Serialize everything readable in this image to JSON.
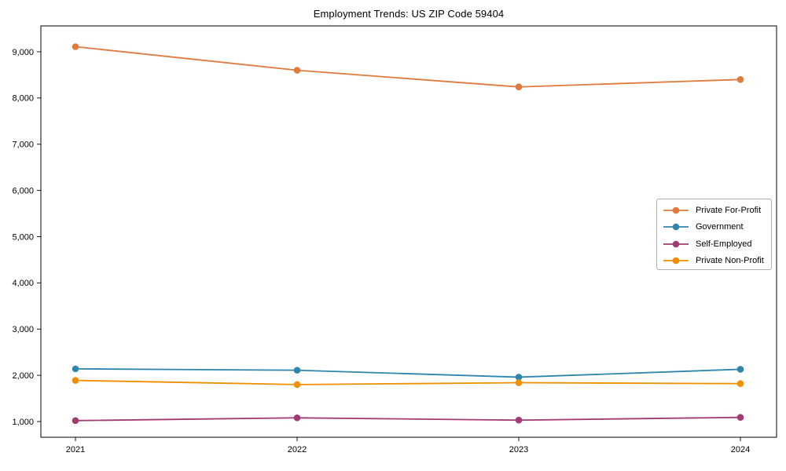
{
  "page": {
    "background_color": "#ffffff",
    "text_color": "#000000",
    "axis_color": "#000000"
  },
  "chart_data": {
    "type": "line",
    "title": "Employment Trends: US ZIP Code 59404",
    "x": [
      "2021",
      "2022",
      "2023",
      "2024"
    ],
    "series": [
      {
        "name": "Private For-Profit",
        "color": "#E0793C",
        "values": [
          9110,
          8600,
          8240,
          8400
        ]
      },
      {
        "name": "Government",
        "color": "#2E86AB",
        "values": [
          2140,
          2110,
          1960,
          2130
        ]
      },
      {
        "name": "Self-Employed",
        "color": "#A23B72",
        "values": [
          1020,
          1080,
          1030,
          1090
        ]
      },
      {
        "name": "Private Non-Profit",
        "color": "#F18F01",
        "values": [
          1890,
          1800,
          1840,
          1820
        ]
      }
    ],
    "y_ticks": {
      "values": [
        1000,
        2000,
        3000,
        4000,
        5000,
        6000,
        7000,
        8000,
        9000
      ],
      "labels": [
        "1,000",
        "2,000",
        "3,000",
        "4,000",
        "5,000",
        "6,000",
        "7,000",
        "8,000",
        "9,000"
      ]
    },
    "ylim": [
      660,
      9560
    ],
    "xlabel": "",
    "ylabel": "",
    "grid": false,
    "legend_position": "center-right",
    "marker": "circle",
    "frame": "box"
  }
}
